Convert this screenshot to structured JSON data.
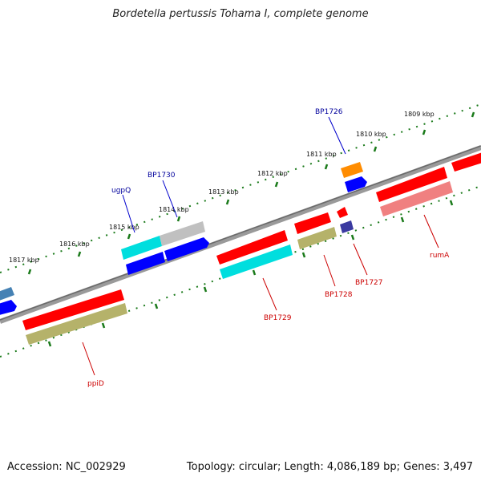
{
  "title": "Bordetella pertussis Tohama I, complete genome",
  "footer": {
    "accession": "Accession: NC_002929",
    "summary": "Topology: circular; Length: 4,086,189 bp; Genes: 3,497"
  },
  "ruler_labels": [
    "1809 kbp",
    "1810 kbp",
    "1811 kbp",
    "1812 kbp",
    "1813 kbp",
    "1814 kbp",
    "1815 kbp",
    "1816 kbp",
    "1817 kbp"
  ],
  "gene_labels": [
    {
      "name": "BP1726",
      "color": "#00009c"
    },
    {
      "name": "BP1730",
      "color": "#00009c"
    },
    {
      "name": "ugpQ",
      "color": "#00009c"
    },
    {
      "name": "rumA",
      "color": "#cc0000"
    },
    {
      "name": "BP1727",
      "color": "#cc0000"
    },
    {
      "name": "BP1728",
      "color": "#cc0000"
    },
    {
      "name": "BP1729",
      "color": "#cc0000"
    },
    {
      "name": "ppiD",
      "color": "#cc0000"
    }
  ],
  "colors": {
    "backbone": "#808080",
    "ruler_ticks": "#1a7a1a",
    "red": "#ff0000",
    "pink": "#f08080",
    "cyan": "#00e5e5",
    "blue": "#0000ff",
    "gray": "#c0c0c0",
    "olive": "#b5b26a",
    "orange": "#ff8c00",
    "purple": "#3a3aa0",
    "steel": "#4682b4"
  }
}
